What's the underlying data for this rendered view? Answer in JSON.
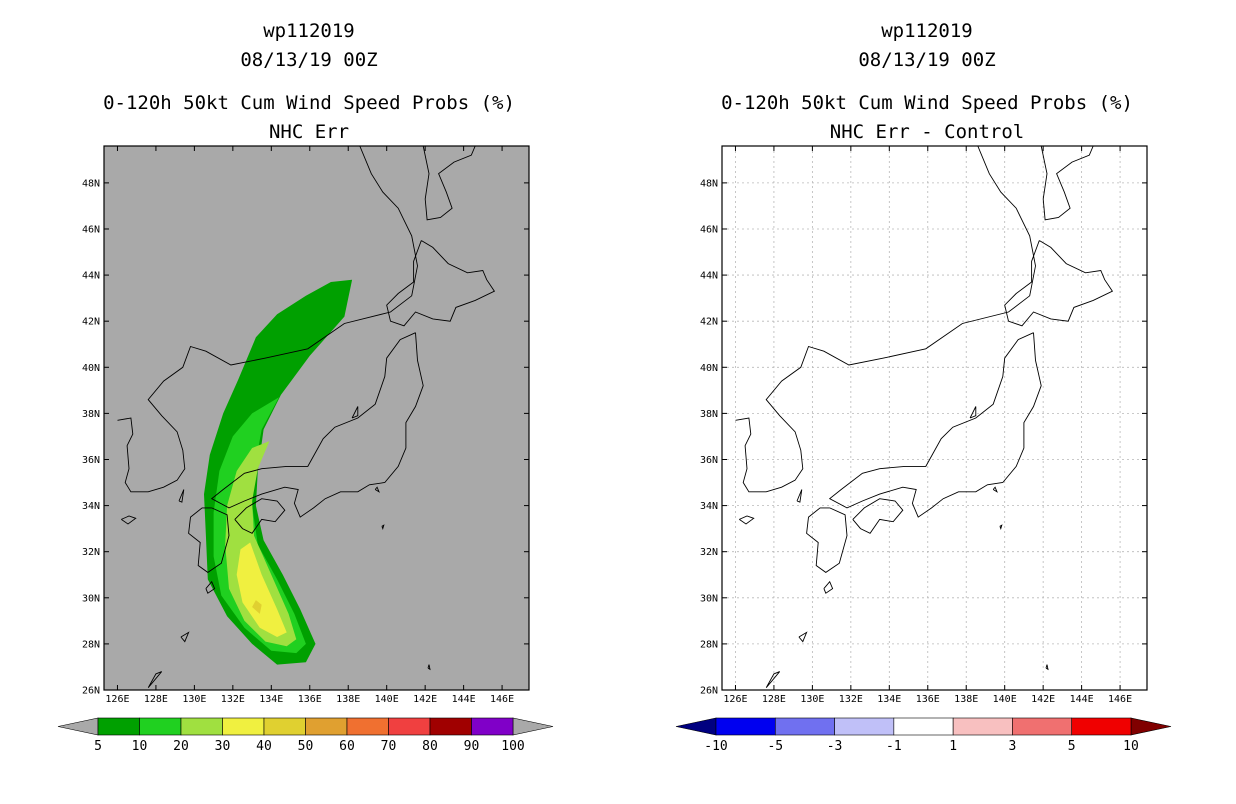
{
  "chart_data": [
    {
      "type": "heatmap",
      "id": "left",
      "title_lines": [
        "wp112019",
        "08/13/19 00Z",
        "0-120h 50kt Cum Wind Speed Probs (%)",
        "NHC Err"
      ],
      "xlabels": [
        "126E",
        "128E",
        "130E",
        "132E",
        "134E",
        "136E",
        "138E",
        "140E",
        "142E",
        "144E",
        "146E"
      ],
      "ylabels": [
        "26N",
        "28N",
        "30N",
        "32N",
        "34N",
        "36N",
        "38N",
        "40N",
        "42N",
        "44N",
        "46N",
        "48N"
      ],
      "xlim": [
        125.3,
        147.4
      ],
      "ylim": [
        26.0,
        49.6
      ],
      "background": "#a9a9a9",
      "grid": false,
      "colorbar": {
        "labels": [
          "5",
          "10",
          "20",
          "30",
          "40",
          "50",
          "60",
          "70",
          "80",
          "90",
          "100"
        ],
        "colors": [
          "#00a000",
          "#20d020",
          "#a0e040",
          "#f0f040",
          "#e0d030",
          "#e0a030",
          "#f07030",
          "#f04040",
          "#a00000",
          "#8000c8"
        ],
        "under": "#a9a9a9",
        "over": "#a9a9a9"
      },
      "probability_zones": [
        {
          "level": 5,
          "color": "#00a000",
          "outline": [
            [
              138.2,
              43.8
            ],
            [
              137.8,
              42.2
            ],
            [
              136.0,
              40.5
            ],
            [
              134.5,
              38.8
            ],
            [
              133.6,
              37.3
            ],
            [
              133.3,
              35.5
            ],
            [
              133.2,
              34.0
            ],
            [
              133.6,
              32.5
            ],
            [
              134.6,
              31.0
            ],
            [
              135.5,
              29.5
            ],
            [
              136.3,
              28.0
            ],
            [
              135.8,
              27.2
            ],
            [
              134.3,
              27.1
            ],
            [
              133.0,
              28.0
            ],
            [
              131.7,
              29.2
            ],
            [
              130.7,
              30.8
            ],
            [
              130.6,
              32.7
            ],
            [
              130.5,
              34.5
            ],
            [
              130.8,
              36.2
            ],
            [
              131.5,
              38.0
            ],
            [
              132.3,
              39.5
            ],
            [
              133.2,
              41.3
            ],
            [
              134.3,
              42.3
            ],
            [
              135.8,
              43.1
            ],
            [
              137.1,
              43.7
            ]
          ]
        },
        {
          "level": 10,
          "color": "#20d020",
          "outline": [
            [
              134.4,
              38.7
            ],
            [
              133.5,
              37.3
            ],
            [
              133.1,
              35.5
            ],
            [
              133.0,
              34.0
            ],
            [
              133.3,
              32.3
            ],
            [
              134.3,
              30.8
            ],
            [
              135.2,
              29.3
            ],
            [
              135.8,
              28.0
            ],
            [
              135.3,
              27.6
            ],
            [
              134.0,
              27.7
            ],
            [
              132.6,
              28.7
            ],
            [
              131.4,
              30.1
            ],
            [
              131.0,
              31.8
            ],
            [
              131.0,
              33.7
            ],
            [
              131.3,
              35.5
            ],
            [
              132.0,
              37.0
            ],
            [
              133.0,
              38.0
            ]
          ]
        },
        {
          "level": 20,
          "color": "#a0e040",
          "outline": [
            [
              133.9,
              36.8
            ],
            [
              133.3,
              35.6
            ],
            [
              133.0,
              34.2
            ],
            [
              133.1,
              32.7
            ],
            [
              134.0,
              31.0
            ],
            [
              134.9,
              29.3
            ],
            [
              135.3,
              28.2
            ],
            [
              134.8,
              27.9
            ],
            [
              133.7,
              28.1
            ],
            [
              132.6,
              29.0
            ],
            [
              131.8,
              30.4
            ],
            [
              131.6,
              32.3
            ],
            [
              131.7,
              34.0
            ],
            [
              132.2,
              35.5
            ],
            [
              133.0,
              36.5
            ]
          ]
        },
        {
          "level": 30,
          "color": "#f0f040",
          "outline": [
            [
              132.9,
              32.4
            ],
            [
              133.5,
              31.0
            ],
            [
              134.3,
              29.5
            ],
            [
              134.8,
              28.5
            ],
            [
              134.3,
              28.3
            ],
            [
              133.4,
              28.7
            ],
            [
              132.5,
              29.8
            ],
            [
              132.2,
              31.0
            ],
            [
              132.4,
              32.1
            ]
          ]
        },
        {
          "level": 40,
          "color": "#e0d030",
          "outline": [
            [
              133.2,
              29.9
            ],
            [
              133.5,
              29.7
            ],
            [
              133.4,
              29.3
            ],
            [
              133.0,
              29.6
            ]
          ]
        }
      ]
    },
    {
      "type": "heatmap",
      "id": "right",
      "title_lines": [
        "wp112019",
        "08/13/19 00Z",
        "0-120h 50kt Cum Wind Speed Probs (%)",
        "NHC Err - Control"
      ],
      "xlabels": [
        "126E",
        "128E",
        "130E",
        "132E",
        "134E",
        "136E",
        "138E",
        "140E",
        "142E",
        "144E",
        "146E"
      ],
      "ylabels": [
        "26N",
        "28N",
        "30N",
        "32N",
        "34N",
        "36N",
        "38N",
        "40N",
        "42N",
        "44N",
        "46N",
        "48N"
      ],
      "xlim": [
        125.3,
        147.4
      ],
      "ylim": [
        26.0,
        49.6
      ],
      "background": "#ffffff",
      "grid": true,
      "colorbar": {
        "labels": [
          "-10",
          "-5",
          "-3",
          "-1",
          "1",
          "3",
          "5",
          "10"
        ],
        "colors": [
          "#0000f0",
          "#7070f0",
          "#c0c0f8",
          "#ffffff",
          "#f8c0c0",
          "#f07070",
          "#f00000"
        ],
        "under": "#000080",
        "over": "#800000"
      },
      "probability_zones": []
    }
  ]
}
